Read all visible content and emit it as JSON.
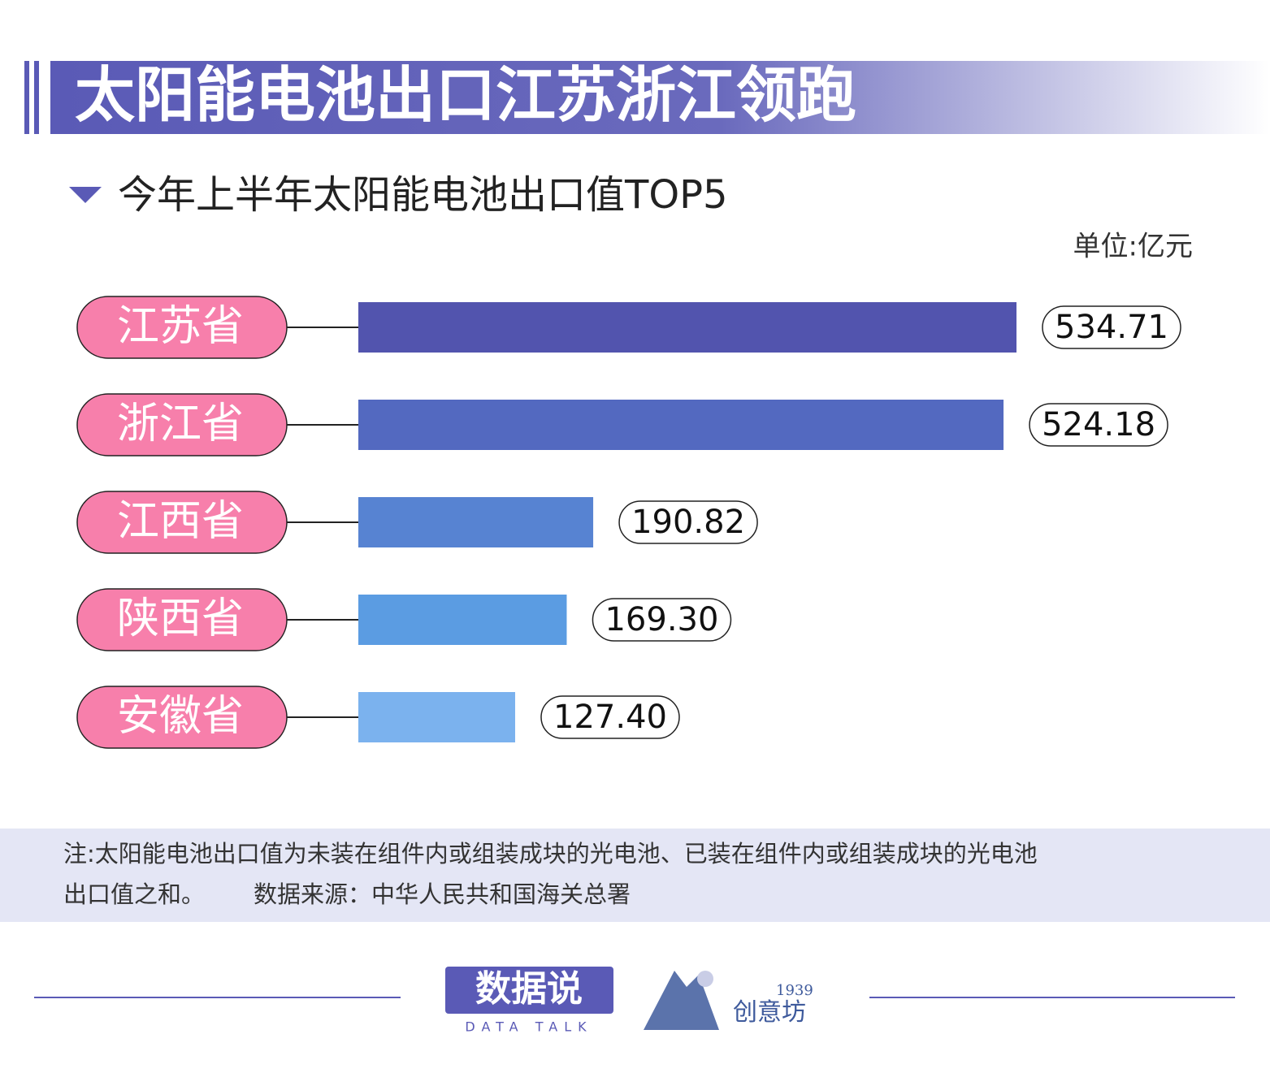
{
  "chart_data": {
    "type": "bar",
    "orientation": "horizontal",
    "title": "太阳能电池出口江苏浙江领跑",
    "subtitle": "今年上半年太阳能电池出口值TOP5",
    "unit": "单位:亿元",
    "categories": [
      "江苏省",
      "浙江省",
      "江西省",
      "陕西省",
      "安徽省"
    ],
    "values": [
      534.71,
      524.18,
      190.82,
      169.3,
      127.4
    ],
    "value_labels": [
      "534.71",
      "524.18",
      "190.82",
      "169.30",
      "127.40"
    ],
    "colors": [
      "#5254ae",
      "#5369c0",
      "#5783d2",
      "#5b9ce2",
      "#7bb2ee"
    ],
    "label_color": "#f77fab"
  },
  "note_lines": [
    "注:太阳能电池出口值为未装在组件内或组装成块的光电池、已装在组件内或组装成块的光电池",
    "出口值之和。"
  ],
  "source": "数据来源：中华人民共和国海关总署",
  "footer": {
    "brand": "数据说",
    "brand_en": "DATA TALK",
    "year": "1939",
    "partner": "创意坊"
  }
}
